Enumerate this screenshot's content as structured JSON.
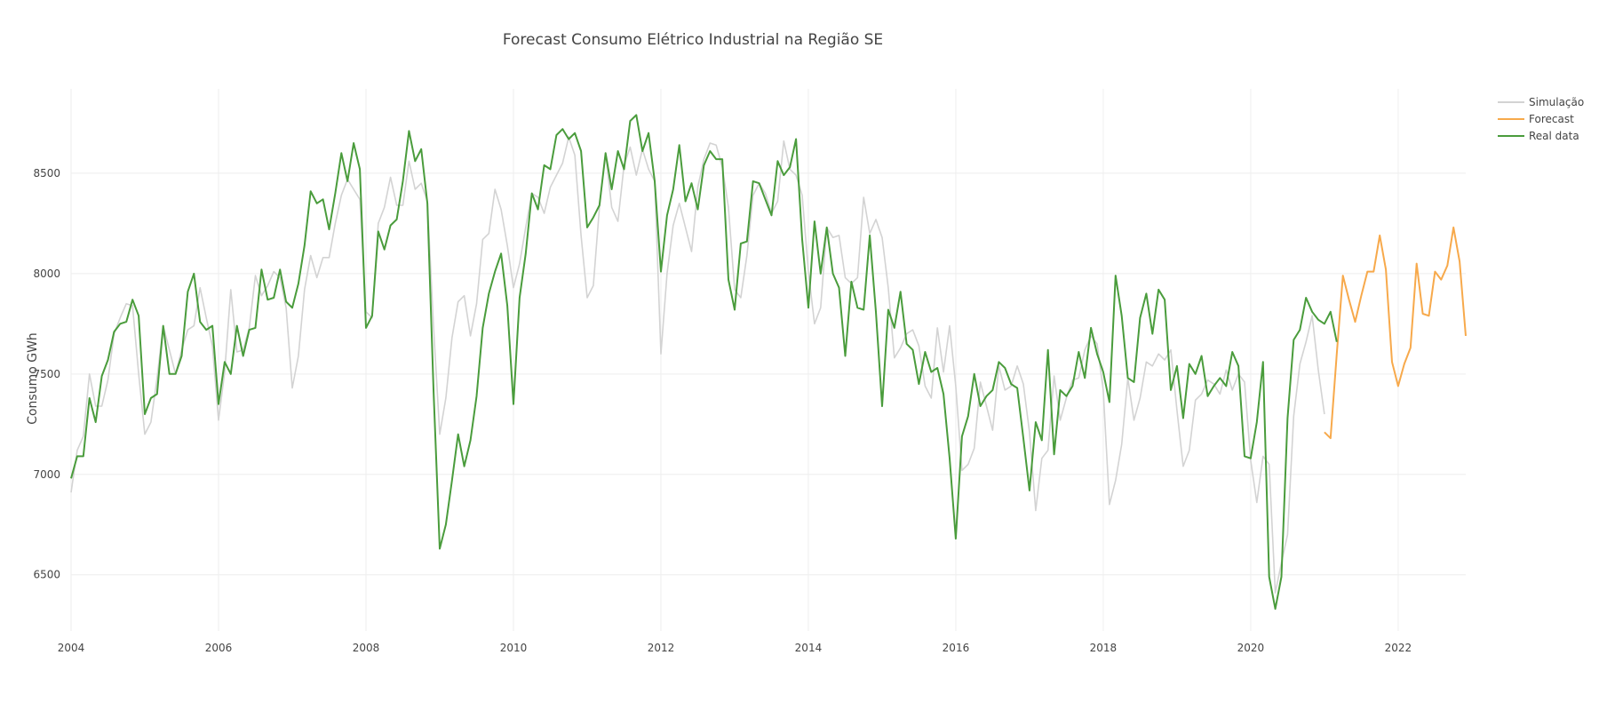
{
  "chart_data": {
    "type": "line",
    "title": "Forecast Consumo Elétrico Industrial na Região SE",
    "xlabel": "",
    "ylabel": "Consumo GWh",
    "x_ticks": [
      "2004",
      "2006",
      "2008",
      "2010",
      "2012",
      "2014",
      "2016",
      "2018",
      "2020",
      "2022"
    ],
    "y_ticks": [
      "6500",
      "7000",
      "7500",
      "8000",
      "8500"
    ],
    "xlim": [
      "2004-01",
      "2022-12"
    ],
    "ylim": [
      6220,
      8920
    ],
    "grid": true,
    "legend_position": "top-right",
    "series": [
      {
        "name": "Simulação",
        "color": "#d3d3d3",
        "start": "2004-01",
        "values": [
          6910,
          7120,
          7190,
          7500,
          7340,
          7340,
          7470,
          7700,
          7780,
          7850,
          7840,
          7500,
          7200,
          7260,
          7480,
          7740,
          7620,
          7500,
          7620,
          7720,
          7740,
          7930,
          7780,
          7640,
          7270,
          7510,
          7920,
          7610,
          7620,
          7730,
          7990,
          7890,
          7940,
          8010,
          7980,
          7830,
          7430,
          7590,
          7920,
          8090,
          7980,
          8080,
          8080,
          8250,
          8390,
          8470,
          8420,
          8370,
          7810,
          7780,
          8250,
          8330,
          8480,
          8340,
          8340,
          8560,
          8420,
          8450,
          8360,
          7730,
          7200,
          7380,
          7680,
          7860,
          7890,
          7690,
          7850,
          8170,
          8200,
          8420,
          8320,
          8140,
          7930,
          8050,
          8230,
          8400,
          8380,
          8300,
          8430,
          8490,
          8550,
          8680,
          8590,
          8190,
          7880,
          7940,
          8330,
          8600,
          8330,
          8260,
          8540,
          8630,
          8490,
          8620,
          8520,
          8460,
          7600,
          8000,
          8240,
          8350,
          8230,
          8110,
          8430,
          8570,
          8650,
          8640,
          8530,
          8330,
          7920,
          7880,
          8090,
          8390,
          8450,
          8400,
          8300,
          8360,
          8660,
          8520,
          8490,
          8390,
          8010,
          7750,
          7830,
          8230,
          8180,
          8190,
          7980,
          7950,
          7980,
          8380,
          8200,
          8270,
          8180,
          7930,
          7580,
          7630,
          7700,
          7720,
          7640,
          7440,
          7380,
          7730,
          7510,
          7740,
          7440,
          7020,
          7050,
          7130,
          7460,
          7340,
          7220,
          7540,
          7420,
          7440,
          7540,
          7450,
          7210,
          6820,
          7080,
          7120,
          7490,
          7270,
          7380,
          7470,
          7480,
          7620,
          7690,
          7650,
          7420,
          6850,
          6970,
          7150,
          7480,
          7270,
          7380,
          7560,
          7540,
          7600,
          7570,
          7620,
          7320,
          7040,
          7120,
          7370,
          7400,
          7470,
          7450,
          7400,
          7520,
          7420,
          7500,
          7460,
          7070,
          6860,
          7090,
          7050,
          6410,
          6560,
          6700,
          7290,
          7550,
          7660,
          7790,
          7520,
          7300
        ]
      },
      {
        "name": "Forecast",
        "color": "#f7a94b",
        "start": "2021-01",
        "values": [
          7210,
          7180,
          7600,
          7990,
          7870,
          7760,
          7890,
          8010,
          8010,
          8190,
          8020,
          7560,
          7440,
          7550,
          7630,
          8050,
          7800,
          7790,
          8010,
          7970,
          8040,
          8230,
          8060,
          7690
        ]
      },
      {
        "name": "Real data",
        "color": "#4a9c3c",
        "start": "2004-01",
        "values": [
          6980,
          7090,
          7090,
          7380,
          7260,
          7490,
          7570,
          7710,
          7750,
          7760,
          7870,
          7790,
          7300,
          7380,
          7400,
          7740,
          7500,
          7500,
          7590,
          7910,
          8000,
          7760,
          7720,
          7740,
          7350,
          7560,
          7500,
          7740,
          7590,
          7720,
          7730,
          8020,
          7870,
          7880,
          8020,
          7860,
          7830,
          7950,
          8140,
          8410,
          8350,
          8370,
          8220,
          8400,
          8600,
          8460,
          8650,
          8520,
          7730,
          7790,
          8210,
          8120,
          8240,
          8270,
          8460,
          8710,
          8560,
          8620,
          8350,
          7410,
          6630,
          6750,
          6970,
          7200,
          7040,
          7170,
          7390,
          7730,
          7900,
          8010,
          8100,
          7840,
          7350,
          7880,
          8100,
          8400,
          8320,
          8540,
          8520,
          8690,
          8720,
          8670,
          8700,
          8610,
          8230,
          8280,
          8340,
          8600,
          8420,
          8610,
          8520,
          8760,
          8790,
          8610,
          8700,
          8460,
          8010,
          8290,
          8420,
          8640,
          8360,
          8450,
          8320,
          8540,
          8610,
          8570,
          8570,
          7970,
          7820,
          8150,
          8160,
          8460,
          8450,
          8370,
          8290,
          8560,
          8490,
          8530,
          8670,
          8170,
          7830,
          8260,
          8000,
          8230,
          8000,
          7930,
          7590,
          7960,
          7830,
          7820,
          8190,
          7810,
          7340,
          7820,
          7730,
          7910,
          7650,
          7620,
          7450,
          7610,
          7510,
          7530,
          7400,
          7080,
          6680,
          7190,
          7290,
          7500,
          7340,
          7390,
          7420,
          7560,
          7530,
          7450,
          7430,
          7180,
          6920,
          7260,
          7170,
          7620,
          7100,
          7420,
          7390,
          7440,
          7610,
          7480,
          7730,
          7600,
          7510,
          7360,
          7990,
          7790,
          7480,
          7460,
          7780,
          7900,
          7700,
          7920,
          7870,
          7420,
          7540,
          7280,
          7550,
          7500,
          7590,
          7390,
          7440,
          7480,
          7440,
          7610,
          7540,
          7090,
          7080,
          7260,
          7560,
          6490,
          6330,
          6490,
          7280,
          7670,
          7720,
          7880,
          7810,
          7770,
          7750,
          7810,
          7660
        ]
      }
    ]
  }
}
